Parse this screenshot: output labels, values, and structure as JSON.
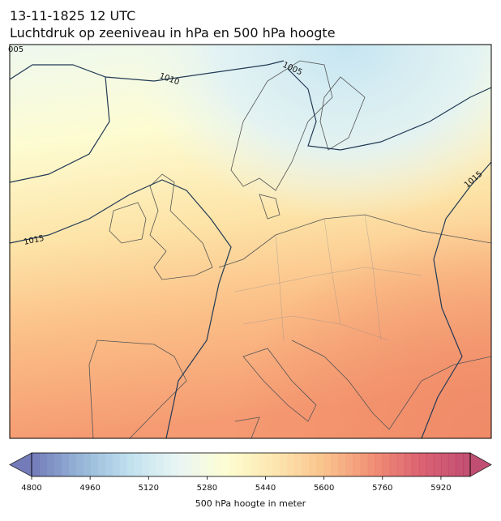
{
  "header": {
    "title": "13-11-1825 12 UTC",
    "subtitle": "Luchtdruk op zeeniveau in hPa en 500 hPa hoogte"
  },
  "map": {
    "isobars": [
      {
        "label": "005"
      },
      {
        "label": "1010"
      },
      {
        "label": "1005"
      },
      {
        "label": "1015"
      },
      {
        "label": "1015"
      }
    ]
  },
  "colorbar": {
    "label": "500 hPa hoogte in meter",
    "range": [
      4800,
      6000
    ],
    "step": 20,
    "ticks": [
      4800,
      4960,
      5120,
      5280,
      5440,
      5600,
      5760,
      5920
    ],
    "colormap": [
      "#5b64ad",
      "#84a9d0",
      "#b5dbec",
      "#e6f4f3",
      "#fdfdcb",
      "#fde2a2",
      "#f9b97a",
      "#ee7c5e",
      "#d4475a",
      "#b6305a"
    ]
  }
}
